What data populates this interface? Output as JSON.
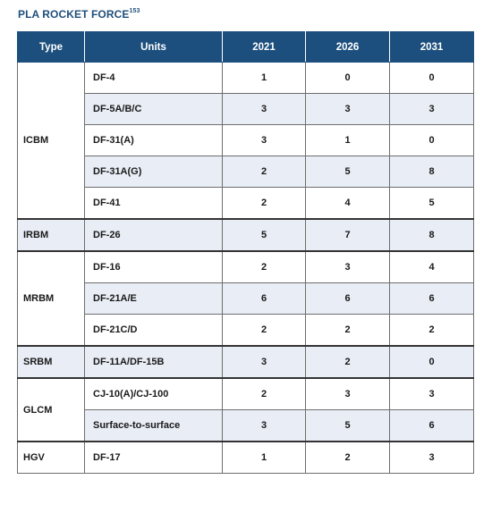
{
  "title": "PLA ROCKET FORCE",
  "title_note": "153",
  "headers": [
    "Type",
    "Units",
    "2021",
    "2026",
    "2031"
  ],
  "groups": [
    {
      "type": "ICBM",
      "rows": [
        {
          "unit": "DF-4",
          "v2021": "1",
          "v2026": "0",
          "v2031": "0"
        },
        {
          "unit": "DF-5A/B/C",
          "v2021": "3",
          "v2026": "3",
          "v2031": "3"
        },
        {
          "unit": "DF-31(A)",
          "v2021": "3",
          "v2026": "1",
          "v2031": "0"
        },
        {
          "unit": "DF-31A(G)",
          "v2021": "2",
          "v2026": "5",
          "v2031": "8"
        },
        {
          "unit": "DF-41",
          "v2021": "2",
          "v2026": "4",
          "v2031": "5"
        }
      ]
    },
    {
      "type": "IRBM",
      "rows": [
        {
          "unit": "DF-26",
          "v2021": "5",
          "v2026": "7",
          "v2031": "8"
        }
      ]
    },
    {
      "type": "MRBM",
      "rows": [
        {
          "unit": "DF-16",
          "v2021": "2",
          "v2026": "3",
          "v2031": "4"
        },
        {
          "unit": "DF-21A/E",
          "v2021": "6",
          "v2026": "6",
          "v2031": "6"
        },
        {
          "unit": "DF-21C/D",
          "v2021": "2",
          "v2026": "2",
          "v2031": "2"
        }
      ]
    },
    {
      "type": "SRBM",
      "rows": [
        {
          "unit": "DF-11A/DF-15B",
          "v2021": "3",
          "v2026": "2",
          "v2031": "0"
        }
      ]
    },
    {
      "type": "GLCM",
      "rows": [
        {
          "unit": "CJ-10(A)/CJ-100",
          "v2021": "2",
          "v2026": "3",
          "v2031": "3"
        },
        {
          "unit": "Surface-to-surface",
          "v2021": "3",
          "v2026": "5",
          "v2031": "6"
        }
      ]
    },
    {
      "type": "HGV",
      "rows": [
        {
          "unit": "DF-17",
          "v2021": "1",
          "v2026": "2",
          "v2031": "3"
        }
      ]
    }
  ],
  "colors": {
    "header_bg": "#1c4f7d",
    "title": "#1f4f7b",
    "shade": "#e9edf5"
  }
}
